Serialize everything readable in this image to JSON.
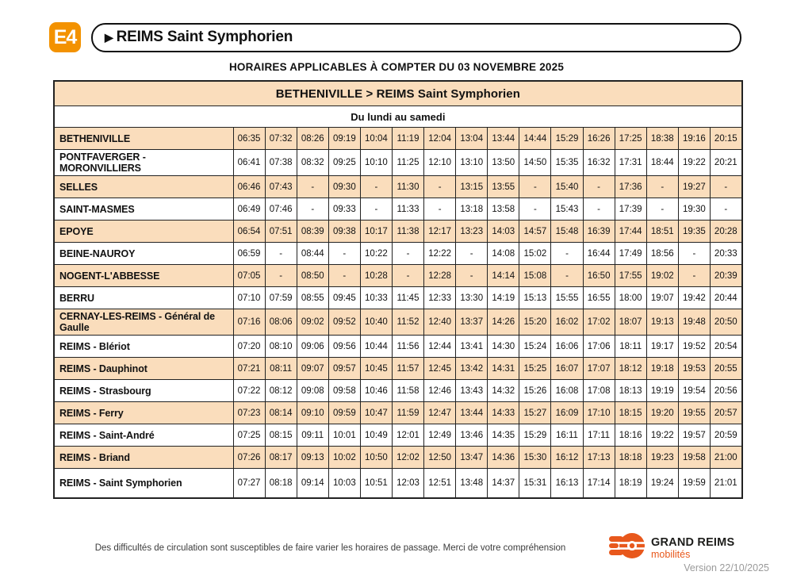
{
  "header": {
    "line": "E4",
    "arrow_icon": "▶",
    "route": "REIMS Saint Symphorien",
    "effective": "HORAIRES APPLICABLES À COMPTER DU 03 NOVEMBRE 2025"
  },
  "table": {
    "title": "BETHENIVILLE > REIMS Saint Symphorien",
    "days": "Du lundi au samedi",
    "rows": [
      {
        "station": "BETHENIVILLE",
        "times": [
          "06:35",
          "07:32",
          "08:26",
          "09:19",
          "10:04",
          "11:19",
          "12:04",
          "13:04",
          "13:44",
          "14:44",
          "15:29",
          "16:26",
          "17:25",
          "18:38",
          "19:16",
          "20:15"
        ]
      },
      {
        "station": "PONTFAVERGER - MORONVILLIERS",
        "times": [
          "06:41",
          "07:38",
          "08:32",
          "09:25",
          "10:10",
          "11:25",
          "12:10",
          "13:10",
          "13:50",
          "14:50",
          "15:35",
          "16:32",
          "17:31",
          "18:44",
          "19:22",
          "20:21"
        ]
      },
      {
        "station": "SELLES",
        "times": [
          "06:46",
          "07:43",
          "-",
          "09:30",
          "-",
          "11:30",
          "-",
          "13:15",
          "13:55",
          "-",
          "15:40",
          "-",
          "17:36",
          "-",
          "19:27",
          "-"
        ]
      },
      {
        "station": "SAINT-MASMES",
        "times": [
          "06:49",
          "07:46",
          "-",
          "09:33",
          "-",
          "11:33",
          "-",
          "13:18",
          "13:58",
          "-",
          "15:43",
          "-",
          "17:39",
          "-",
          "19:30",
          "-"
        ]
      },
      {
        "station": "EPOYE",
        "times": [
          "06:54",
          "07:51",
          "08:39",
          "09:38",
          "10:17",
          "11:38",
          "12:17",
          "13:23",
          "14:03",
          "14:57",
          "15:48",
          "16:39",
          "17:44",
          "18:51",
          "19:35",
          "20:28"
        ]
      },
      {
        "station": "BEINE-NAUROY",
        "times": [
          "06:59",
          "-",
          "08:44",
          "-",
          "10:22",
          "-",
          "12:22",
          "-",
          "14:08",
          "15:02",
          "-",
          "16:44",
          "17:49",
          "18:56",
          "-",
          "20:33"
        ]
      },
      {
        "station": "NOGENT-L'ABBESSE",
        "times": [
          "07:05",
          "-",
          "08:50",
          "-",
          "10:28",
          "-",
          "12:28",
          "-",
          "14:14",
          "15:08",
          "-",
          "16:50",
          "17:55",
          "19:02",
          "-",
          "20:39"
        ]
      },
      {
        "station": "BERRU",
        "times": [
          "07:10",
          "07:59",
          "08:55",
          "09:45",
          "10:33",
          "11:45",
          "12:33",
          "13:30",
          "14:19",
          "15:13",
          "15:55",
          "16:55",
          "18:00",
          "19:07",
          "19:42",
          "20:44"
        ]
      },
      {
        "station": "CERNAY-LES-REIMS - Général de Gaulle",
        "times": [
          "07:16",
          "08:06",
          "09:02",
          "09:52",
          "10:40",
          "11:52",
          "12:40",
          "13:37",
          "14:26",
          "15:20",
          "16:02",
          "17:02",
          "18:07",
          "19:13",
          "19:48",
          "20:50"
        ]
      },
      {
        "station": "REIMS - Blériot",
        "times": [
          "07:20",
          "08:10",
          "09:06",
          "09:56",
          "10:44",
          "11:56",
          "12:44",
          "13:41",
          "14:30",
          "15:24",
          "16:06",
          "17:06",
          "18:11",
          "19:17",
          "19:52",
          "20:54"
        ]
      },
      {
        "station": "REIMS - Dauphinot",
        "times": [
          "07:21",
          "08:11",
          "09:07",
          "09:57",
          "10:45",
          "11:57",
          "12:45",
          "13:42",
          "14:31",
          "15:25",
          "16:07",
          "17:07",
          "18:12",
          "19:18",
          "19:53",
          "20:55"
        ]
      },
      {
        "station": "REIMS - Strasbourg",
        "times": [
          "07:22",
          "08:12",
          "09:08",
          "09:58",
          "10:46",
          "11:58",
          "12:46",
          "13:43",
          "14:32",
          "15:26",
          "16:08",
          "17:08",
          "18:13",
          "19:19",
          "19:54",
          "20:56"
        ]
      },
      {
        "station": "REIMS - Ferry",
        "times": [
          "07:23",
          "08:14",
          "09:10",
          "09:59",
          "10:47",
          "11:59",
          "12:47",
          "13:44",
          "14:33",
          "15:27",
          "16:09",
          "17:10",
          "18:15",
          "19:20",
          "19:55",
          "20:57"
        ]
      },
      {
        "station": "REIMS - Saint-André",
        "times": [
          "07:25",
          "08:15",
          "09:11",
          "10:01",
          "10:49",
          "12:01",
          "12:49",
          "13:46",
          "14:35",
          "15:29",
          "16:11",
          "17:11",
          "18:16",
          "19:22",
          "19:57",
          "20:59"
        ]
      },
      {
        "station": "REIMS - Briand",
        "times": [
          "07:26",
          "08:17",
          "09:13",
          "10:02",
          "10:50",
          "12:02",
          "12:50",
          "13:47",
          "14:36",
          "15:30",
          "16:12",
          "17:13",
          "18:18",
          "19:23",
          "19:58",
          "21:00"
        ]
      },
      {
        "station": "REIMS - Saint Symphorien",
        "times": [
          "07:27",
          "08:18",
          "09:14",
          "10:03",
          "10:51",
          "12:03",
          "12:51",
          "13:48",
          "14:37",
          "15:31",
          "16:13",
          "17:14",
          "18:19",
          "19:24",
          "19:59",
          "21:01"
        ]
      }
    ]
  },
  "footer": {
    "disclaimer": "Des difficultés de circulation sont susceptibles de faire varier les horaires de passage. Merci de votre compréhension",
    "logo_name": "GRAND REIMS",
    "logo_sub": "mobilités",
    "version": "Version 22/10/2025"
  },
  "colors": {
    "badge_orange": "#F39200",
    "logo_orange": "#E8581C",
    "row_peach": "#FADDBC"
  }
}
